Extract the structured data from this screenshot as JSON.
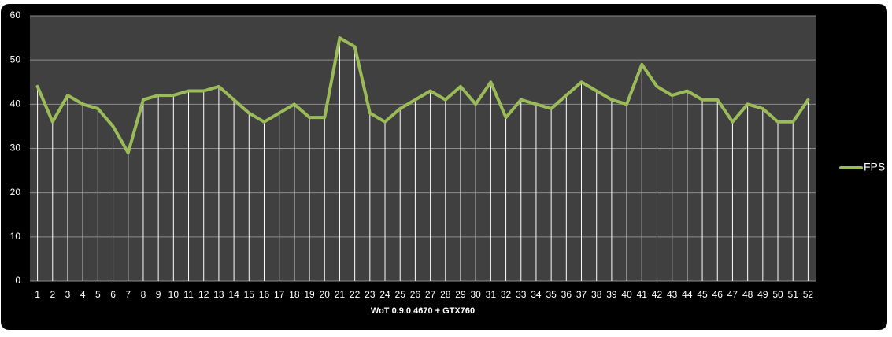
{
  "chart_data": {
    "type": "line",
    "x_label": "WoT 0.9.0 4670 + GTX760",
    "categories": [
      "1",
      "2",
      "3",
      "4",
      "5",
      "6",
      "7",
      "8",
      "9",
      "10",
      "11",
      "12",
      "13",
      "14",
      "15",
      "16",
      "17",
      "18",
      "19",
      "20",
      "21",
      "22",
      "23",
      "24",
      "25",
      "26",
      "27",
      "28",
      "29",
      "30",
      "31",
      "32",
      "33",
      "34",
      "35",
      "36",
      "37",
      "38",
      "39",
      "40",
      "41",
      "42",
      "43",
      "44",
      "45",
      "46",
      "47",
      "48",
      "49",
      "50",
      "51",
      "52"
    ],
    "series": [
      {
        "name": "FPS",
        "color": "#9bbb59",
        "values": [
          44,
          36,
          42,
          40,
          39,
          35,
          29,
          41,
          42,
          42,
          43,
          43,
          44,
          41,
          38,
          36,
          38,
          40,
          37,
          37,
          55,
          53,
          38,
          36,
          39,
          41,
          43,
          41,
          44,
          40,
          45,
          37,
          41,
          40,
          39,
          42,
          45,
          43,
          41,
          40,
          49,
          44,
          42,
          43,
          41,
          41,
          36,
          40,
          39,
          36,
          36,
          41
        ]
      }
    ],
    "ylim": [
      0,
      60
    ],
    "yticks": [
      0,
      10,
      20,
      30,
      40,
      50,
      60
    ],
    "grid": true,
    "drop_lines": true,
    "legend": "right"
  }
}
